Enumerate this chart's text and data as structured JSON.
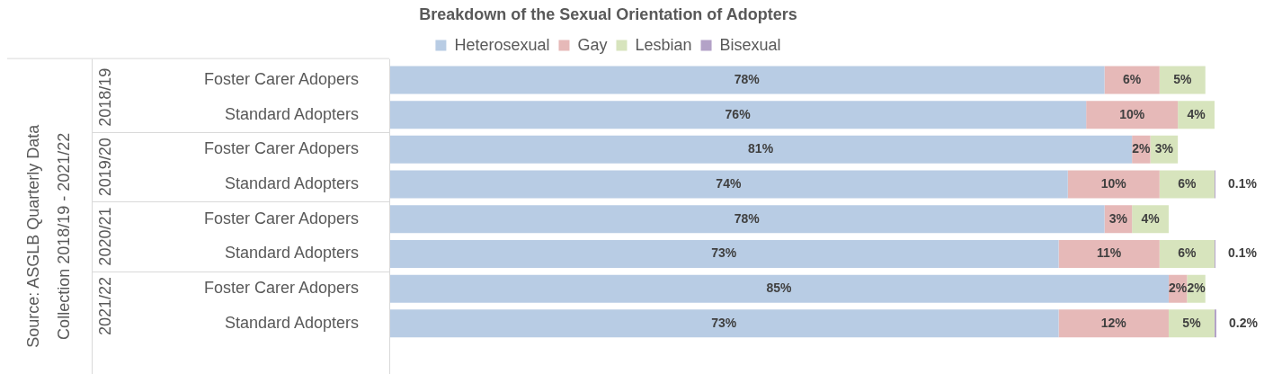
{
  "chart_data": {
    "type": "bar",
    "orientation": "horizontal",
    "stacked": true,
    "title": "Breakdown of the Sexual Orientation of Adopters",
    "categories": [
      "Foster Carer Adopers",
      "Standard Adopters",
      "Foster Carer Adopers",
      "Standard Adopters",
      "Foster Carer Adopers",
      "Standard Adopters",
      "Foster Carer Adopers",
      "Standard Adopters"
    ],
    "series": [
      {
        "name": "Heterosexual",
        "color": "#b8cce4",
        "values": [
          78,
          76,
          81,
          74,
          78,
          73,
          85,
          73
        ],
        "value_labels": [
          "78%",
          "76%",
          "81%",
          "74%",
          "78%",
          "73%",
          "85%",
          "73%"
        ]
      },
      {
        "name": "Gay",
        "color": "#e6b9b8",
        "values": [
          6,
          10,
          2,
          10,
          3,
          11,
          2,
          12
        ],
        "value_labels": [
          "6%",
          "10%",
          "2%",
          "10%",
          "3%",
          "11%",
          "2%",
          "12%"
        ]
      },
      {
        "name": "Lesbian",
        "color": "#d7e4bd",
        "values": [
          5,
          4,
          3,
          6,
          4,
          6,
          2,
          5
        ],
        "value_labels": [
          "5%",
          "4%",
          "3%",
          "6%",
          "4%",
          "6%",
          "2%",
          "5%"
        ]
      },
      {
        "name": "Bisexual",
        "color": "#b3a2c7",
        "values": [
          null,
          null,
          null,
          0.1,
          null,
          0.1,
          null,
          0.2
        ],
        "value_labels": [
          null,
          null,
          null,
          "0.1%",
          null,
          "0.1%",
          null,
          "0.2%"
        ]
      }
    ],
    "xlim": [
      0,
      90.2
    ],
    "legend": "top",
    "tick_labels": "y",
    "annotations": [
      "Source: ASGLB Quarterly Data Collection 2018/19 - 2021/22",
      "2018/19",
      "2019/20",
      "2020/21",
      "2021/22"
    ]
  }
}
